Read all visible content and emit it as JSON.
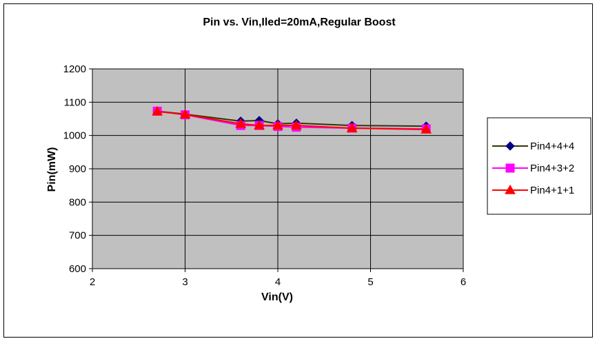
{
  "chart_data": {
    "type": "line",
    "title": "Pin vs. Vin,Iled=20mA,Regular Boost",
    "xlabel": "Vin(V)",
    "ylabel": "Pin(mW)",
    "xlim": [
      2,
      6
    ],
    "ylim": [
      600,
      1200
    ],
    "x_ticks": [
      2,
      3,
      4,
      5,
      6
    ],
    "y_ticks": [
      600,
      700,
      800,
      900,
      1000,
      1100,
      1200
    ],
    "grid": "horizontal-and-vertical",
    "plot_background": "#c0c0c0",
    "legend_position": "right",
    "series": [
      {
        "name": "Pin4+4+4",
        "color": "#000080",
        "line_color": "#333300",
        "marker": "diamond",
        "x": [
          2.7,
          3.0,
          3.6,
          3.8,
          4.0,
          4.2,
          4.8,
          5.6
        ],
        "y": [
          1073,
          1064,
          1043,
          1045,
          1035,
          1037,
          1030,
          1028
        ]
      },
      {
        "name": "Pin4+3+2",
        "color": "#ff00ff",
        "line_color": "#ff00ff",
        "marker": "square",
        "x": [
          2.7,
          3.0,
          3.6,
          3.8,
          4.0,
          4.2,
          4.8,
          5.6
        ],
        "y": [
          1073,
          1062,
          1030,
          1030,
          1027,
          1025,
          1022,
          1020
        ]
      },
      {
        "name": "Pin4+1+1",
        "color": "#ff0000",
        "line_color": "#ff0000",
        "marker": "triangle",
        "x": [
          2.7,
          3.0,
          3.6,
          3.8,
          4.0,
          4.2,
          4.8,
          5.6
        ],
        "y": [
          1072,
          1063,
          1035,
          1030,
          1030,
          1030,
          1022,
          1018
        ]
      }
    ]
  }
}
